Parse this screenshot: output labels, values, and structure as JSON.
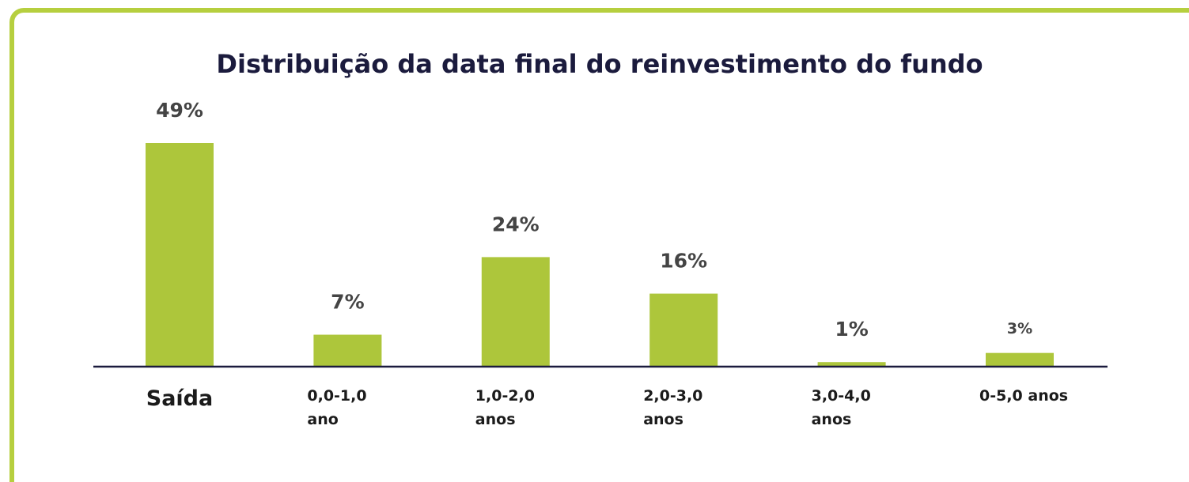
{
  "chart_data": {
    "type": "bar",
    "title": "Distribuição da data final do reinvestimento do fundo",
    "categories": [
      "Saída",
      "0,0-1,0 ano",
      "1,0-2,0 anos",
      "2,0-3,0 anos",
      "3,0-4,0 anos",
      "0-5,0 anos"
    ],
    "values": [
      49,
      7,
      24,
      16,
      1,
      3
    ],
    "value_labels": [
      "49%",
      "7%",
      "24%",
      "16%",
      "1%",
      "3%"
    ],
    "color": "#adc63b"
  }
}
